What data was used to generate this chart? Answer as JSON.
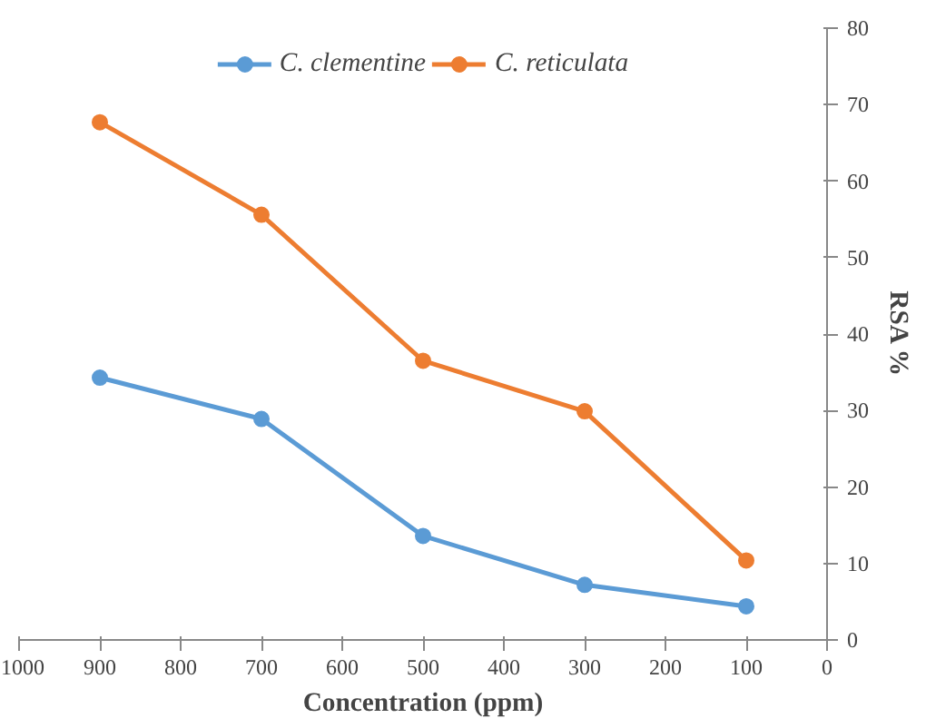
{
  "chart_data": {
    "type": "line",
    "xlabel": "Concentration (ppm)",
    "ylabel": "RSA %",
    "x": [
      900,
      700,
      500,
      300,
      100
    ],
    "series": [
      {
        "name": "C. clementine",
        "color": "#5b9bd5",
        "values": [
          34.3,
          28.9,
          13.6,
          7.2,
          4.4
        ]
      },
      {
        "name": "C. reticulata",
        "color": "#ed7d31",
        "values": [
          67.7,
          55.6,
          36.5,
          29.9,
          10.4
        ]
      }
    ],
    "xlim": [
      1000,
      0
    ],
    "xticks": [
      1000,
      900,
      800,
      700,
      600,
      500,
      400,
      300,
      200,
      100,
      0
    ],
    "ylim": [
      0,
      80
    ],
    "yticks": [
      0,
      10,
      20,
      30,
      40,
      50,
      60,
      70,
      80
    ],
    "grid": false,
    "legend": "top",
    "marker": "circle",
    "line_style": "solid"
  }
}
